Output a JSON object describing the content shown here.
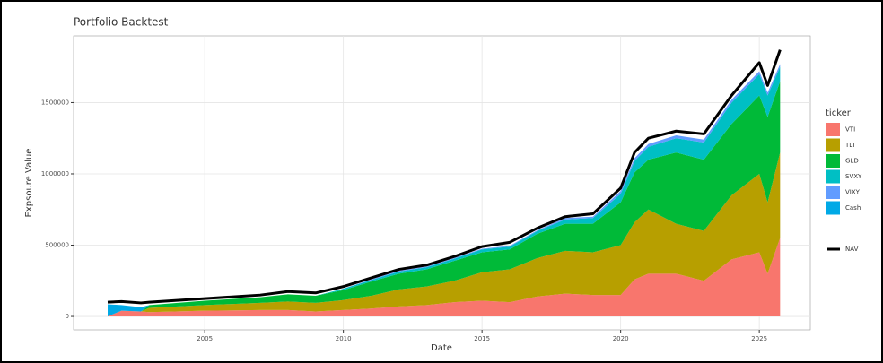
{
  "chart_data": {
    "type": "area",
    "title": "Portfolio Backtest",
    "x_label": "Date",
    "y_label": "Expsoure Value",
    "legend_title": "ticker",
    "x": [
      2001.5,
      2002,
      2002.7,
      2003,
      2005,
      2007,
      2008,
      2009,
      2010,
      2011,
      2012,
      2013,
      2014,
      2015,
      2016,
      2017,
      2018,
      2019,
      2020,
      2020.5,
      2021,
      2022,
      2023,
      2024,
      2025,
      2025.3,
      2025.75
    ],
    "series": [
      {
        "name": "VTI",
        "color": "#F8766D",
        "values": [
          0,
          40000,
          35000,
          30000,
          40000,
          45000,
          45000,
          35000,
          45000,
          55000,
          70000,
          80000,
          100000,
          110000,
          100000,
          140000,
          160000,
          150000,
          150000,
          260000,
          300000,
          300000,
          250000,
          400000,
          450000,
          300000,
          550000
        ]
      },
      {
        "name": "TLT",
        "color": "#B79F00",
        "values": [
          0,
          0,
          0,
          30000,
          40000,
          50000,
          60000,
          60000,
          70000,
          90000,
          120000,
          130000,
          150000,
          200000,
          230000,
          270000,
          300000,
          300000,
          350000,
          400000,
          450000,
          350000,
          350000,
          450000,
          550000,
          500000,
          600000
        ]
      },
      {
        "name": "GLD",
        "color": "#00BA38",
        "values": [
          0,
          0,
          0,
          20000,
          30000,
          40000,
          50000,
          50000,
          70000,
          100000,
          110000,
          120000,
          140000,
          140000,
          140000,
          170000,
          190000,
          200000,
          300000,
          350000,
          350000,
          500000,
          500000,
          500000,
          550000,
          600000,
          500000
        ]
      },
      {
        "name": "SVXY",
        "color": "#00BFC4",
        "values": [
          0,
          0,
          0,
          0,
          0,
          0,
          0,
          0,
          10000,
          10000,
          15000,
          15000,
          15000,
          20000,
          20000,
          20000,
          30000,
          40000,
          60000,
          80000,
          90000,
          100000,
          120000,
          150000,
          150000,
          150000,
          100000
        ]
      },
      {
        "name": "VIXY",
        "color": "#619CFF",
        "values": [
          0,
          0,
          0,
          0,
          0,
          0,
          0,
          0,
          0,
          5000,
          5000,
          5000,
          5000,
          5000,
          5000,
          5000,
          10000,
          10000,
          20000,
          20000,
          20000,
          20000,
          20000,
          20000,
          20000,
          20000,
          20000
        ]
      },
      {
        "name": "Cash",
        "color": "#00A9E6",
        "values": [
          85000,
          40000,
          30000,
          0,
          0,
          0,
          0,
          0,
          0,
          0,
          0,
          0,
          0,
          0,
          0,
          0,
          0,
          0,
          0,
          0,
          0,
          0,
          0,
          0,
          0,
          0,
          0
        ]
      },
      {
        "name": "NAV",
        "color": "#000000",
        "type": "line",
        "values": [
          100000,
          105000,
          95000,
          100000,
          125000,
          150000,
          175000,
          165000,
          210000,
          270000,
          330000,
          360000,
          420000,
          490000,
          520000,
          620000,
          700000,
          720000,
          900000,
          1150000,
          1250000,
          1300000,
          1280000,
          1550000,
          1780000,
          1620000,
          1870000
        ]
      }
    ],
    "xlim": [
      2000.27,
      2026.84
    ],
    "ylim": [
      -94000,
      1968000
    ],
    "xticks": [
      2005,
      2010,
      2015,
      2020,
      2025
    ],
    "yticks": [
      0,
      500000,
      1000000,
      1500000
    ],
    "grid": true
  }
}
